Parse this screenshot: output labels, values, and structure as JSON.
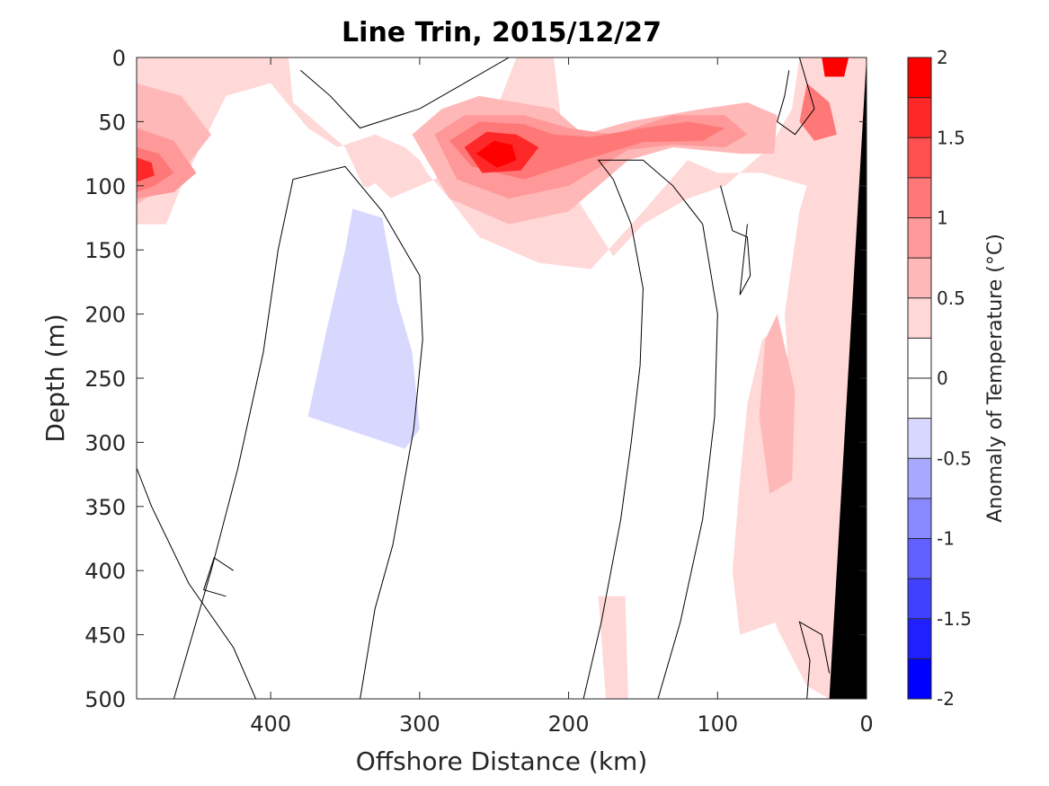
{
  "chart_data": {
    "type": "contour",
    "title": "Line Trin, 2015/12/27",
    "xlabel": "Offshore Distance (km)",
    "ylabel": "Depth (m)",
    "xlim": [
      490,
      0
    ],
    "ylim": [
      0,
      500
    ],
    "x_reversed": true,
    "y_reversed": true,
    "xticks": [
      400,
      300,
      200,
      100,
      0
    ],
    "yticks": [
      0,
      50,
      100,
      150,
      200,
      250,
      300,
      350,
      400,
      450,
      500
    ],
    "colorbar": {
      "label": "Anomaly of Temperature (°C)",
      "range": [
        -2,
        2
      ],
      "step": 0.25,
      "ticks": [
        2,
        1.5,
        1,
        0.5,
        0,
        -0.5,
        -1,
        -1.5,
        -2
      ],
      "colors": [
        "#0000ff",
        "#2020ff",
        "#4040ff",
        "#6060ff",
        "#8888ff",
        "#a8a8ff",
        "#d8d8ff",
        "#ffffff",
        "#ffffff",
        "#ffd8d8",
        "#ffb8b8",
        "#ff9898",
        "#ff7878",
        "#ff5050",
        "#ff2828",
        "#ff0000"
      ]
    },
    "regions": [
      {
        "level": 0.25,
        "pts": [
          [
            490,
            0
          ],
          [
            388,
            0
          ],
          [
            385,
            35
          ],
          [
            350,
            70
          ],
          [
            338,
            100
          ],
          [
            320,
            110
          ],
          [
            290,
            95
          ],
          [
            255,
            60
          ],
          [
            240,
            15
          ],
          [
            235,
            0
          ],
          [
            210,
            0
          ],
          [
            200,
            100
          ],
          [
            170,
            155
          ],
          [
            150,
            130
          ],
          [
            120,
            110
          ],
          [
            95,
            100
          ],
          [
            80,
            85
          ],
          [
            65,
            70
          ],
          [
            50,
            40
          ],
          [
            45,
            0
          ],
          [
            0,
            0
          ],
          [
            0,
            500
          ],
          [
            25,
            500
          ],
          [
            40,
            490
          ],
          [
            60,
            445
          ],
          [
            70,
            400
          ],
          [
            60,
            350
          ],
          [
            50,
            280
          ],
          [
            55,
            200
          ],
          [
            45,
            120
          ],
          [
            40,
            100
          ],
          [
            70,
            90
          ],
          [
            100,
            90
          ],
          [
            120,
            80
          ],
          [
            150,
            120
          ],
          [
            185,
            165
          ],
          [
            220,
            160
          ],
          [
            260,
            140
          ],
          [
            280,
            110
          ],
          [
            295,
            90
          ],
          [
            300,
            80
          ],
          [
            310,
            70
          ],
          [
            330,
            60
          ],
          [
            355,
            70
          ],
          [
            375,
            55
          ],
          [
            400,
            20
          ],
          [
            430,
            30
          ],
          [
            460,
            100
          ],
          [
            470,
            130
          ],
          [
            490,
            130
          ]
        ]
      },
      {
        "level": 0.5,
        "pts": [
          [
            490,
            20
          ],
          [
            460,
            30
          ],
          [
            440,
            60
          ],
          [
            460,
            90
          ],
          [
            490,
            115
          ]
        ]
      },
      {
        "level": 0.75,
        "pts": [
          [
            490,
            55
          ],
          [
            465,
            65
          ],
          [
            450,
            90
          ],
          [
            465,
            105
          ],
          [
            490,
            110
          ]
        ]
      },
      {
        "level": 1.0,
        "pts": [
          [
            490,
            70
          ],
          [
            475,
            75
          ],
          [
            465,
            90
          ],
          [
            478,
            100
          ],
          [
            490,
            105
          ]
        ]
      },
      {
        "level": 1.5,
        "pts": [
          [
            490,
            78
          ],
          [
            480,
            82
          ],
          [
            478,
            92
          ],
          [
            490,
            97
          ]
        ]
      },
      {
        "level": 0.5,
        "pts": [
          [
            305,
            60
          ],
          [
            285,
            40
          ],
          [
            260,
            30
          ],
          [
            210,
            40
          ],
          [
            190,
            60
          ],
          [
            160,
            50
          ],
          [
            110,
            40
          ],
          [
            80,
            35
          ],
          [
            60,
            45
          ],
          [
            62,
            75
          ],
          [
            85,
            75
          ],
          [
            130,
            70
          ],
          [
            160,
            80
          ],
          [
            200,
            120
          ],
          [
            240,
            130
          ],
          [
            280,
            110
          ]
        ]
      },
      {
        "level": 0.75,
        "pts": [
          [
            290,
            60
          ],
          [
            270,
            45
          ],
          [
            230,
            45
          ],
          [
            200,
            55
          ],
          [
            170,
            60
          ],
          [
            130,
            45
          ],
          [
            95,
            45
          ],
          [
            80,
            60
          ],
          [
            95,
            70
          ],
          [
            130,
            68
          ],
          [
            160,
            72
          ],
          [
            200,
            100
          ],
          [
            240,
            110
          ],
          [
            275,
            95
          ]
        ]
      },
      {
        "level": 1.0,
        "pts": [
          [
            280,
            65
          ],
          [
            260,
            50
          ],
          [
            230,
            52
          ],
          [
            210,
            60
          ],
          [
            185,
            62
          ],
          [
            150,
            55
          ],
          [
            120,
            50
          ],
          [
            95,
            55
          ],
          [
            110,
            65
          ],
          [
            150,
            66
          ],
          [
            190,
            80
          ],
          [
            230,
            95
          ],
          [
            265,
            85
          ]
        ]
      },
      {
        "level": 1.5,
        "pts": [
          [
            270,
            70
          ],
          [
            255,
            58
          ],
          [
            235,
            60
          ],
          [
            220,
            70
          ],
          [
            232,
            88
          ],
          [
            258,
            90
          ]
        ]
      },
      {
        "level": 1.75,
        "pts": [
          [
            262,
            75
          ],
          [
            250,
            65
          ],
          [
            238,
            68
          ],
          [
            235,
            80
          ],
          [
            248,
            86
          ]
        ]
      },
      {
        "level": 1.0,
        "pts": [
          [
            40,
            20
          ],
          [
            25,
            35
          ],
          [
            20,
            60
          ],
          [
            35,
            65
          ],
          [
            45,
            50
          ]
        ]
      },
      {
        "level": 1.75,
        "pts": [
          [
            30,
            0
          ],
          [
            12,
            0
          ],
          [
            15,
            15
          ],
          [
            28,
            15
          ]
        ]
      },
      {
        "level": 0.25,
        "pts": [
          [
            60,
            210
          ],
          [
            45,
            260
          ],
          [
            35,
            320
          ],
          [
            45,
            380
          ],
          [
            60,
            440
          ],
          [
            85,
            450
          ],
          [
            90,
            400
          ],
          [
            85,
            330
          ],
          [
            80,
            270
          ],
          [
            70,
            220
          ]
        ]
      },
      {
        "level": 0.5,
        "pts": [
          [
            60,
            200
          ],
          [
            48,
            260
          ],
          [
            50,
            330
          ],
          [
            65,
            340
          ],
          [
            72,
            280
          ],
          [
            68,
            220
          ]
        ]
      },
      {
        "level": 0.25,
        "pts": [
          [
            180,
            420
          ],
          [
            175,
            500
          ],
          [
            160,
            500
          ],
          [
            162,
            420
          ]
        ]
      },
      {
        "level": -0.25,
        "pts": [
          [
            390,
            500
          ],
          [
            385,
            420
          ],
          [
            375,
            350
          ],
          [
            372,
            300
          ],
          [
            368,
            210
          ],
          [
            360,
            120
          ],
          [
            330,
            98
          ],
          [
            310,
            120
          ],
          [
            295,
            210
          ],
          [
            290,
            290
          ],
          [
            285,
            380
          ],
          [
            300,
            470
          ],
          [
            320,
            500
          ]
        ]
      },
      {
        "level": -0.5,
        "pts": [
          [
            375,
            280
          ],
          [
            362,
            210
          ],
          [
            350,
            150
          ],
          [
            345,
            118
          ],
          [
            325,
            125
          ],
          [
            315,
            190
          ],
          [
            305,
            230
          ],
          [
            300,
            290
          ],
          [
            310,
            305
          ]
        ]
      },
      {
        "level": -0.25,
        "pts": [
          [
            135,
            400
          ],
          [
            145,
            340
          ],
          [
            150,
            310
          ],
          [
            140,
            290
          ],
          [
            130,
            330
          ],
          [
            125,
            390
          ]
        ]
      },
      {
        "level": -0.25,
        "pts": [
          [
            60,
            100
          ],
          [
            70,
            130
          ],
          [
            80,
            135
          ],
          [
            85,
            110
          ],
          [
            80,
            95
          ]
        ]
      },
      {
        "level": -0.25,
        "pts": [
          [
            120,
            180
          ],
          [
            125,
            220
          ],
          [
            130,
            230
          ],
          [
            135,
            200
          ],
          [
            130,
            170
          ]
        ]
      }
    ],
    "contour_lines_value": 0,
    "contour_lines": [
      [
        [
          410,
          500
        ],
        [
          425,
          460
        ],
        [
          455,
          410
        ],
        [
          480,
          350
        ],
        [
          490,
          320
        ]
      ],
      [
        [
          340,
          500
        ],
        [
          330,
          430
        ],
        [
          318,
          380
        ],
        [
          304,
          290
        ],
        [
          298,
          220
        ],
        [
          300,
          170
        ],
        [
          325,
          120
        ],
        [
          350,
          85
        ],
        [
          385,
          95
        ],
        [
          395,
          150
        ],
        [
          405,
          230
        ],
        [
          422,
          320
        ],
        [
          440,
          400
        ],
        [
          460,
          480
        ],
        [
          465,
          500
        ]
      ],
      [
        [
          190,
          500
        ],
        [
          178,
          440
        ],
        [
          165,
          360
        ],
        [
          158,
          300
        ],
        [
          152,
          240
        ],
        [
          150,
          180
        ],
        [
          158,
          130
        ],
        [
          170,
          95
        ],
        [
          180,
          80
        ],
        [
          150,
          80
        ],
        [
          130,
          100
        ],
        [
          110,
          130
        ],
        [
          100,
          200
        ],
        [
          102,
          280
        ],
        [
          110,
          360
        ],
        [
          125,
          440
        ],
        [
          140,
          500
        ]
      ],
      [
        [
          240,
          0
        ],
        [
          270,
          20
        ],
        [
          300,
          40
        ],
        [
          340,
          55
        ],
        [
          360,
          30
        ],
        [
          380,
          10
        ]
      ],
      [
        [
          45,
          0
        ],
        [
          40,
          20
        ],
        [
          35,
          40
        ],
        [
          48,
          60
        ],
        [
          60,
          50
        ],
        [
          55,
          30
        ],
        [
          52,
          10
        ]
      ],
      [
        [
          40,
          500
        ],
        [
          38,
          470
        ],
        [
          45,
          440
        ],
        [
          30,
          450
        ],
        [
          25,
          480
        ]
      ],
      [
        [
          425,
          400
        ],
        [
          438,
          390
        ],
        [
          445,
          415
        ],
        [
          430,
          420
        ]
      ],
      [
        [
          98,
          100
        ],
        [
          90,
          135
        ],
        [
          80,
          140
        ],
        [
          78,
          170
        ],
        [
          85,
          185
        ],
        [
          80,
          130
        ]
      ]
    ],
    "land_mask": [
      [
        0,
        0
      ],
      [
        0,
        500
      ],
      [
        25,
        500
      ]
    ]
  }
}
